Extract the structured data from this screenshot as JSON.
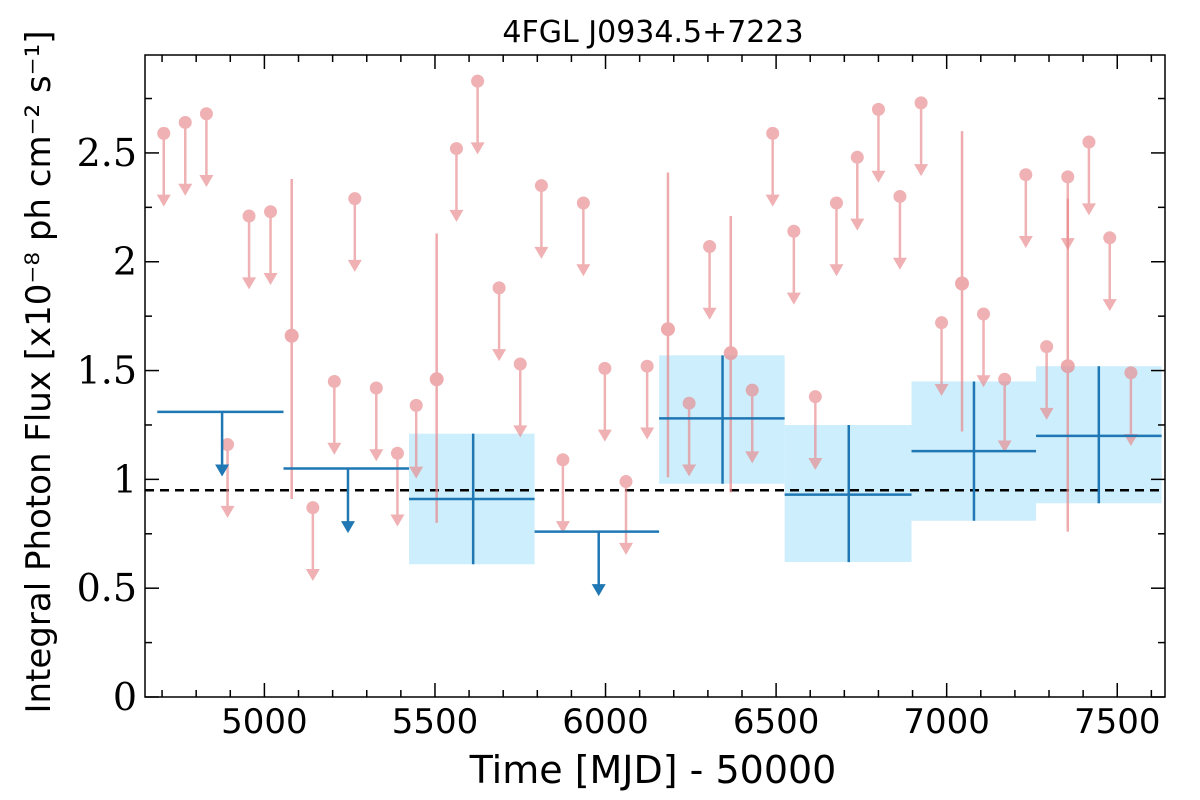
{
  "chart_data": {
    "type": "scatter",
    "title": "4FGL J0934.5+7223",
    "xlabel": "Time [MJD] - 50000",
    "ylabel": "Integral Photon Flux [x10⁻⁸ ph cm⁻² s⁻¹]",
    "xlim": [
      4650,
      7640
    ],
    "ylim": [
      0,
      2.95
    ],
    "xticks": [
      5000,
      5500,
      6000,
      6500,
      7000,
      7500
    ],
    "xtick_labels": [
      "5000",
      "5500",
      "6000",
      "6500",
      "7000",
      "7500"
    ],
    "yticks": [
      0,
      0.5,
      1,
      1.5,
      2,
      2.5
    ],
    "ytick_labels": [
      "0",
      "0.5",
      "1",
      "1.5",
      "2",
      "2.5"
    ],
    "reference_line": {
      "y": 0.95,
      "style": "dashed",
      "color": "#000000"
    },
    "colors": {
      "short_bins": "#e8888c",
      "long_bins": "#1f77b4",
      "band": "#cdeefc"
    },
    "series": [
      {
        "bin": "short",
        "upper_limits": [
          {
            "x": 4705,
            "y": 2.59
          },
          {
            "x": 4768,
            "y": 2.64
          },
          {
            "x": 4830,
            "y": 2.68
          },
          {
            "x": 4892,
            "y": 1.16
          },
          {
            "x": 4955,
            "y": 2.21
          },
          {
            "x": 5018,
            "y": 2.23
          },
          {
            "x": 5142,
            "y": 0.87
          },
          {
            "x": 5205,
            "y": 1.45
          },
          {
            "x": 5265,
            "y": 2.29
          },
          {
            "x": 5328,
            "y": 1.42
          },
          {
            "x": 5390,
            "y": 1.12
          },
          {
            "x": 5445,
            "y": 1.34
          },
          {
            "x": 5563,
            "y": 2.52
          },
          {
            "x": 5625,
            "y": 2.83
          },
          {
            "x": 5688,
            "y": 1.88
          },
          {
            "x": 5750,
            "y": 1.53
          },
          {
            "x": 5812,
            "y": 2.35
          },
          {
            "x": 5875,
            "y": 1.09
          },
          {
            "x": 5935,
            "y": 2.27
          },
          {
            "x": 5998,
            "y": 1.51
          },
          {
            "x": 6060,
            "y": 0.99
          },
          {
            "x": 6122,
            "y": 1.52
          },
          {
            "x": 6245,
            "y": 1.35
          },
          {
            "x": 6305,
            "y": 2.07
          },
          {
            "x": 6430,
            "y": 1.41
          },
          {
            "x": 6490,
            "y": 2.59
          },
          {
            "x": 6552,
            "y": 2.14
          },
          {
            "x": 6615,
            "y": 1.38
          },
          {
            "x": 6677,
            "y": 2.27
          },
          {
            "x": 6738,
            "y": 2.48
          },
          {
            "x": 6800,
            "y": 2.7
          },
          {
            "x": 6863,
            "y": 2.3
          },
          {
            "x": 6925,
            "y": 2.73
          },
          {
            "x": 6985,
            "y": 1.72
          },
          {
            "x": 7108,
            "y": 1.76
          },
          {
            "x": 7170,
            "y": 1.46
          },
          {
            "x": 7232,
            "y": 2.4
          },
          {
            "x": 7293,
            "y": 1.61
          },
          {
            "x": 7355,
            "y": 2.39
          },
          {
            "x": 7417,
            "y": 2.55
          },
          {
            "x": 7478,
            "y": 2.11
          },
          {
            "x": 7540,
            "y": 1.49
          }
        ],
        "detections": [
          {
            "x": 5080,
            "y": 1.66,
            "yerr_low": 0.91,
            "yerr_high": 2.38
          },
          {
            "x": 5505,
            "y": 1.46,
            "yerr_low": 0.8,
            "yerr_high": 2.13
          },
          {
            "x": 6183,
            "y": 1.69,
            "yerr_low": 1.01,
            "yerr_high": 2.41
          },
          {
            "x": 6367,
            "y": 1.58,
            "yerr_low": 0.94,
            "yerr_high": 2.21
          },
          {
            "x": 7045,
            "y": 1.9,
            "yerr_low": 1.22,
            "yerr_high": 2.6
          },
          {
            "x": 7355,
            "y": 1.52,
            "yerr_low": 0.76,
            "yerr_high": 2.29
          }
        ]
      },
      {
        "bin": "long",
        "upper_limits": [
          {
            "x": 4876,
            "y": 1.31,
            "x_low": 4686,
            "x_high": 5056
          },
          {
            "x": 5245,
            "y": 1.05,
            "x_low": 5056,
            "x_high": 5424
          },
          {
            "x": 5980,
            "y": 0.76,
            "x_low": 5792,
            "x_high": 6157
          }
        ],
        "detections": [
          {
            "x": 5612,
            "y": 0.91,
            "x_low": 5424,
            "x_high": 5792,
            "yerr_low": 0.61,
            "yerr_high": 1.21,
            "band_low": 0.61,
            "band_high": 1.21
          },
          {
            "x": 6343,
            "y": 1.28,
            "x_low": 6157,
            "x_high": 6525,
            "yerr_low": 0.98,
            "yerr_high": 1.57,
            "band_low": 0.98,
            "band_high": 1.57
          },
          {
            "x": 6713,
            "y": 0.93,
            "x_low": 6525,
            "x_high": 6897,
            "yerr_low": 0.62,
            "yerr_high": 1.25,
            "band_low": 0.62,
            "band_high": 1.25
          },
          {
            "x": 7080,
            "y": 1.13,
            "x_low": 6897,
            "x_high": 7262,
            "yerr_low": 0.81,
            "yerr_high": 1.45,
            "band_low": 0.81,
            "band_high": 1.45
          },
          {
            "x": 7446,
            "y": 1.2,
            "x_low": 7262,
            "x_high": 7630,
            "yerr_low": 0.89,
            "yerr_high": 1.52,
            "band_low": 0.89,
            "band_high": 1.52
          }
        ]
      }
    ]
  }
}
